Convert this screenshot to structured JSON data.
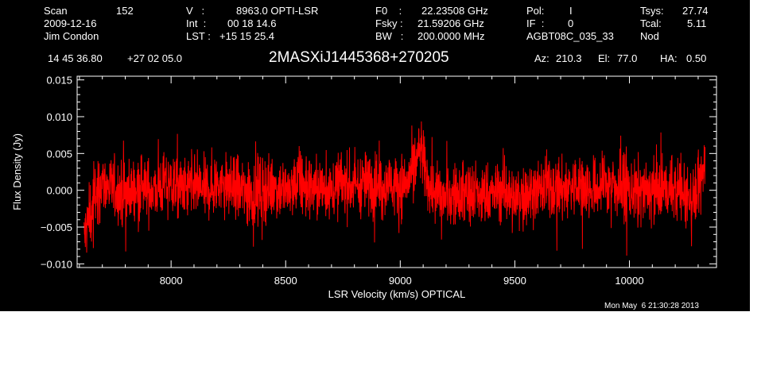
{
  "header": {
    "scan_label": "Scan",
    "scan_value": "152",
    "date": "2009-12-16",
    "observer": "Jim Condon",
    "v_label": "V   :",
    "v_value": "8963.0 OPTI-LSR",
    "int_label": "Int  :",
    "int_value": "00 18 14.6",
    "lst_label": "LST :",
    "lst_value": "+15 15 25.4",
    "f0_label": "F0    :",
    "f0_value": "22.23508 GHz",
    "fsky_label": "Fsky :",
    "fsky_value": "21.59206 GHz",
    "bw_label": "BW   :",
    "bw_value": "200.0000 MHz",
    "pol_label": "Pol:",
    "pol_value": "I",
    "if_label": "IF  :",
    "if_value": "0",
    "project": "AGBT08C_035_33",
    "tsys_label": "Tsys:",
    "tsys_value": "27.74",
    "tcal_label": "Tcal:",
    "tcal_value": "5.11",
    "mode": "Nod",
    "ra": "14 45 36.80",
    "dec": "+27 02 05.0",
    "source": "2MASXiJ1445368+270205",
    "az_label": "Az:",
    "az_value": "210.3",
    "el_label": "El:",
    "el_value": "77.0",
    "ha_label": "HA:",
    "ha_value": "0.50"
  },
  "footer": {
    "timestamp": "Mon May  6 21:30:28 2013"
  },
  "colors": {
    "background": "#000000",
    "axes": "#ffffff",
    "series": "#ff0000"
  },
  "chart_data": {
    "type": "line",
    "title": "",
    "xlabel": "LSR Velocity (km/s) OPTICAL",
    "ylabel": "Flux Density (Jy)",
    "xlim": [
      7590,
      10380
    ],
    "ylim": [
      -0.0105,
      0.0155
    ],
    "xticks": [
      8000,
      8500,
      9000,
      9500,
      10000
    ],
    "xtick_labels": [
      "8000",
      "8500",
      "9000",
      "9500",
      "10000"
    ],
    "yticks": [
      -0.01,
      -0.005,
      0.0,
      0.005,
      0.01,
      0.015
    ],
    "ytick_labels": [
      "−0.010",
      "−0.005",
      "0.000",
      "0.005",
      "0.010",
      "0.015"
    ],
    "grid": false,
    "series": [
      {
        "x": [
          7620,
          7640,
          7660,
          7680,
          7700,
          7720,
          7760,
          7800,
          7850,
          7900,
          7950,
          8000,
          8050,
          8100,
          8150,
          8200,
          8250,
          8300,
          8350,
          8400,
          8450,
          8500,
          8550,
          8600,
          8650,
          8700,
          8750,
          8800,
          8850,
          8900,
          8950,
          9000,
          9030,
          9060,
          9080,
          9090,
          9100,
          9120,
          9150,
          9200,
          9250,
          9300,
          9350,
          9400,
          9450,
          9500,
          9550,
          9600,
          9650,
          9700,
          9750,
          9800,
          9850,
          9900,
          9950,
          10000,
          10050,
          10100,
          10150,
          10200,
          10250,
          10280,
          10300,
          10320,
          10330
        ],
        "y": [
          -0.0065,
          -0.004,
          -0.0015,
          0.0,
          0.001,
          0.0005,
          0.0,
          -0.0005,
          0.0005,
          0.0,
          0.0005,
          0.001,
          0.0,
          0.0005,
          0.0,
          0.001,
          0.0005,
          0.0,
          -0.0005,
          0.0,
          0.0005,
          0.0,
          0.001,
          0.0005,
          0.0,
          0.0005,
          0.001,
          0.0005,
          0.001,
          0.0005,
          0.001,
          0.0005,
          0.001,
          0.003,
          0.005,
          0.0055,
          0.004,
          0.001,
          -0.0005,
          -0.001,
          -0.0005,
          0.0,
          -0.001,
          -0.0005,
          0.0,
          -0.001,
          -0.0005,
          0.0,
          0.0005,
          0.0,
          0.0005,
          0.0005,
          0.0,
          0.001,
          0.0005,
          0.0,
          -0.0005,
          0.0,
          0.0005,
          0.0,
          -0.0005,
          -0.001,
          0.0,
          0.002,
          0.004
        ]
      }
    ]
  }
}
